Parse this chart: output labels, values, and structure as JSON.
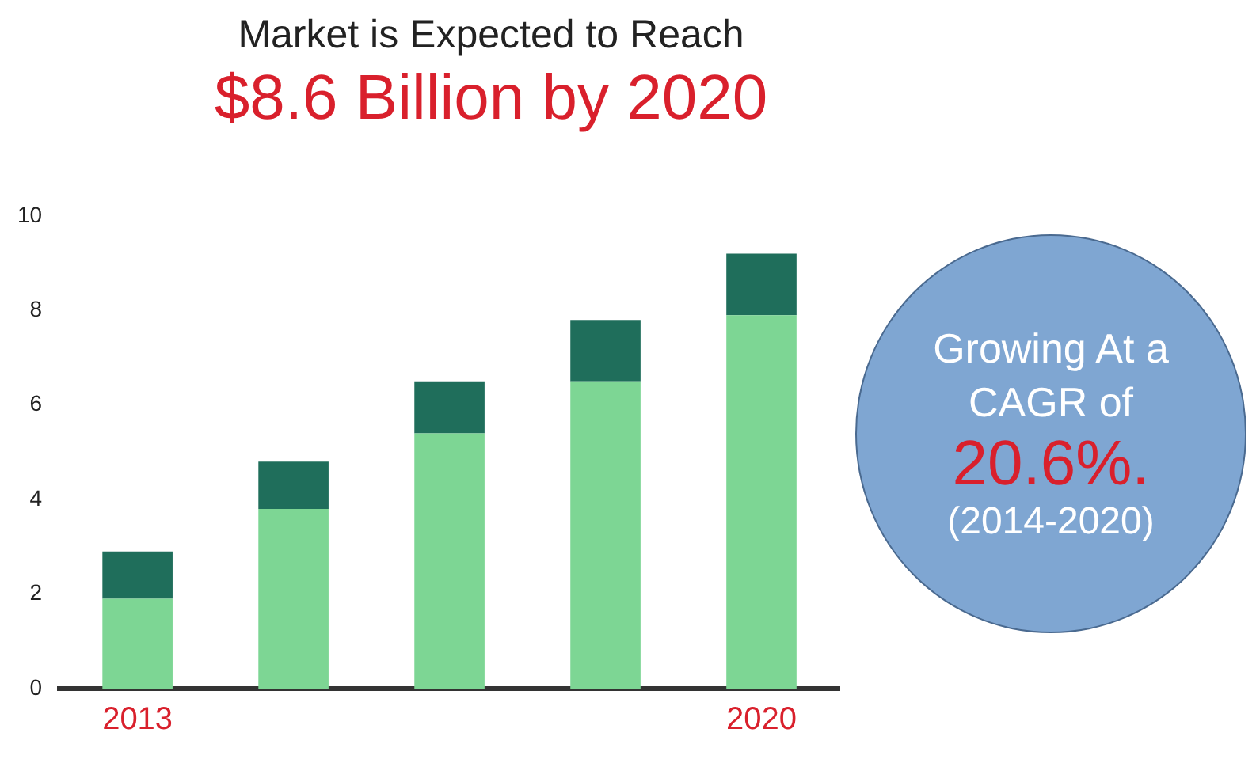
{
  "chart_data": {
    "type": "bar",
    "title": "Market is Expected to Reach",
    "subtitle": "$8.6 Billion by 2020",
    "categories": [
      "2013",
      null,
      null,
      null,
      "2020"
    ],
    "stacked": true,
    "series": [
      {
        "color": "#7dd694",
        "values": [
          1.9,
          3.8,
          5.4,
          6.5,
          7.9
        ]
      },
      {
        "color": "#1f6e5b",
        "values": [
          1.0,
          1.0,
          1.1,
          1.3,
          1.3
        ]
      }
    ],
    "ylim": [
      0,
      10
    ],
    "yticks": [
      0,
      2,
      4,
      6,
      8,
      10
    ],
    "grid": false,
    "legend": false,
    "annotations": [
      "Growing At a CAGR of",
      "20.6%.",
      "(2014-2020)"
    ]
  }
}
